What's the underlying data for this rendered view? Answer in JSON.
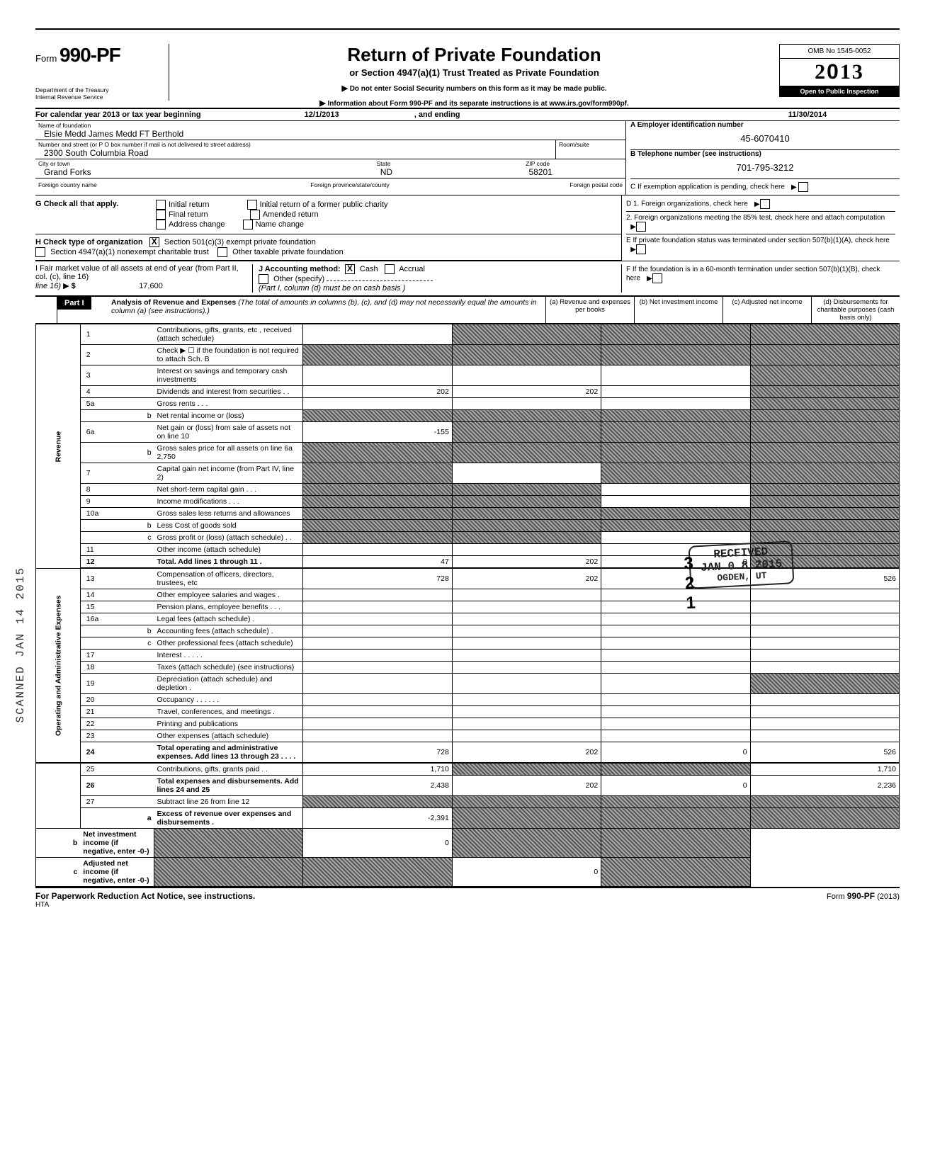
{
  "header": {
    "form_prefix": "Form",
    "form_number": "990-PF",
    "department": "Department of the Treasury",
    "irs": "Internal Revenue Service",
    "title": "Return of Private Foundation",
    "subtitle": "or Section 4947(a)(1) Trust Treated as Private Foundation",
    "instr1": "Do not enter Social Security numbers on this form as it may be made public.",
    "instr2": "Information about Form 990-PF and its separate instructions is at www.irs.gov/form990pf.",
    "omb": "OMB No  1545-0052",
    "year": "2013",
    "open": "Open to Public Inspection"
  },
  "calendar": {
    "label1": "For calendar year 2013 or tax year beginning",
    "begin": "12/1/2013",
    "label2": ", and ending",
    "end": "11/30/2014"
  },
  "foundation": {
    "name_label": "Name of foundation",
    "name": "Elsie Medd James Medd FT Berthold",
    "street_label": "Number and street (or P O  box number if mail is not delivered to street address)",
    "street": "2300 South Columbia Road",
    "room_label": "Room/suite",
    "room": "",
    "city_label": "City or town",
    "city": "Grand Forks",
    "state_label": "State",
    "state": "ND",
    "zip_label": "ZIP code",
    "zip": "58201",
    "foreign_country_label": "Foreign country name",
    "foreign_province_label": "Foreign province/state/county",
    "foreign_postal_label": "Foreign postal code"
  },
  "rightA": {
    "a_label": "A  Employer identification number",
    "ein": "45-6070410",
    "b_label": "B  Telephone number (see instructions)",
    "phone": "701-795-3212",
    "c_label": "C  If exemption application is pending, check here",
    "d1": "D  1. Foreign organizations, check here",
    "d2": "2. Foreign organizations meeting the 85% test, check here and attach computation",
    "e": "E  If private foundation status was terminated under section 507(b)(1)(A), check here",
    "f": "F  If the foundation is in a 60-month termination under section 507(b)(1)(B), check here"
  },
  "g": {
    "label": "G   Check all that apply.",
    "items": [
      "Initial return",
      "Initial return of a former public charity",
      "Final return",
      "Amended return",
      "Address change",
      "Name change"
    ]
  },
  "h": {
    "label": "H   Check type of organization",
    "opt1": "Section 501(c)(3) exempt private foundation",
    "opt2": "Section 4947(a)(1) nonexempt charitable trust",
    "opt3": "Other taxable private foundation"
  },
  "i": {
    "left1": "I    Fair market value of all assets at end of year (from Part II, col. (c), line 16)",
    "left_amount": "17,600",
    "j": "J   Accounting method:",
    "cash": "Cash",
    "accrual": "Accrual",
    "other": "Other (specify)",
    "note": "(Part I, column (d) must be on cash basis )"
  },
  "part1": {
    "label": "Part I",
    "title": "Analysis of Revenue and Expenses",
    "desc": "(The total of amounts in columns (b), (c), and (d) may not necessarily equal the amounts in column (a) (see instructions).)",
    "col_a": "(a)  Revenue and expenses per books",
    "col_b": "(b)  Net investment income",
    "col_c": "(c)  Adjusted net income",
    "col_d": "(d)  Disbursements for charitable purposes (cash basis only)"
  },
  "side_labels": {
    "revenue": "Revenue",
    "expenses": "Operating and Administrative Expenses"
  },
  "rows": [
    {
      "n": "1",
      "d": "Contributions, gifts, grants, etc , received (attach schedule)",
      "a": "",
      "b": "noise",
      "c": "noise",
      "dcol": "noise"
    },
    {
      "n": "2",
      "d": "Check ▶ ☐  if the foundation is not required to attach Sch. B",
      "a": "noise",
      "b": "noise",
      "c": "noise",
      "dcol": "noise"
    },
    {
      "n": "3",
      "d": "Interest on savings and temporary cash investments",
      "a": "",
      "b": "",
      "c": "",
      "dcol": "noise"
    },
    {
      "n": "4",
      "d": "Dividends and interest from securities   .    .",
      "a": "202",
      "b": "202",
      "c": "",
      "dcol": "noise"
    },
    {
      "n": "5a",
      "d": "Gross rents       .           .           .",
      "a": "",
      "b": "",
      "c": "",
      "dcol": "noise"
    },
    {
      "n": "b",
      "d": "Net rental income or (loss)",
      "a": "noise",
      "b": "noise",
      "c": "noise",
      "dcol": "noise",
      "inset": true
    },
    {
      "n": "6a",
      "d": "Net gain or (loss) from sale of assets not on line 10",
      "a": "-155",
      "b": "noise",
      "c": "noise",
      "dcol": "noise"
    },
    {
      "n": "b",
      "d": "Gross sales price for all assets on line 6a                        2,750",
      "a": "noise",
      "b": "noise",
      "c": "noise",
      "dcol": "noise",
      "inset": true
    },
    {
      "n": "7",
      "d": "Capital gain net income (from Part IV, line 2)",
      "a": "noise",
      "b": "",
      "c": "noise",
      "dcol": "noise"
    },
    {
      "n": "8",
      "d": "Net short-term capital gain       .     .     .",
      "a": "noise",
      "b": "noise",
      "c": "",
      "dcol": "noise"
    },
    {
      "n": "9",
      "d": "Income modifications   .        .        .",
      "a": "noise",
      "b": "noise",
      "c": "",
      "dcol": "noise"
    },
    {
      "n": "10a",
      "d": "Gross sales less returns and allowances",
      "a": "noise",
      "b": "noise",
      "c": "noise",
      "dcol": "noise"
    },
    {
      "n": "b",
      "d": "Less  Cost of goods sold",
      "a": "noise",
      "b": "noise",
      "c": "noise",
      "dcol": "noise",
      "inset": true
    },
    {
      "n": "c",
      "d": "Gross profit or (loss) (attach schedule)      .         .",
      "a": "noise",
      "b": "noise",
      "c": "",
      "dcol": "noise",
      "inset": true
    },
    {
      "n": "11",
      "d": "Other income (attach schedule)",
      "a": "",
      "b": "",
      "c": "",
      "dcol": "noise"
    },
    {
      "n": "12",
      "d": "Total.  Add lines 1 through 11           .",
      "a": "47",
      "b": "202",
      "c": "0",
      "dcol": "noise",
      "bold": true
    },
    {
      "n": "13",
      "d": "Compensation of officers, directors, trustees, etc",
      "a": "728",
      "b": "202",
      "c": "",
      "dcol": "526",
      "group": "exp"
    },
    {
      "n": "14",
      "d": "Other employee salaries and wages   .",
      "a": "",
      "b": "",
      "c": "",
      "dcol": "",
      "group": "exp"
    },
    {
      "n": "15",
      "d": "Pension plans, employee benefits   .      .     .",
      "a": "",
      "b": "",
      "c": "",
      "dcol": "",
      "group": "exp"
    },
    {
      "n": "16a",
      "d": "Legal fees (attach schedule)              .",
      "a": "",
      "b": "",
      "c": "",
      "dcol": "",
      "group": "exp"
    },
    {
      "n": "b",
      "d": "Accounting fees (attach schedule)   .",
      "a": "",
      "b": "",
      "c": "",
      "dcol": "",
      "group": "exp",
      "inset": true
    },
    {
      "n": "c",
      "d": "Other professional fees (attach schedule)",
      "a": "",
      "b": "",
      "c": "",
      "dcol": "",
      "group": "exp",
      "inset": true
    },
    {
      "n": "17",
      "d": "Interest        .        .        .        .        .",
      "a": "",
      "b": "",
      "c": "",
      "dcol": "",
      "group": "exp"
    },
    {
      "n": "18",
      "d": "Taxes (attach schedule) (see instructions)",
      "a": "",
      "b": "",
      "c": "",
      "dcol": "",
      "group": "exp"
    },
    {
      "n": "19",
      "d": "Depreciation (attach schedule) and depletion   .",
      "a": "",
      "b": "",
      "c": "",
      "dcol": "noise",
      "group": "exp"
    },
    {
      "n": "20",
      "d": "Occupancy   .        .        .        .     .     .",
      "a": "",
      "b": "",
      "c": "",
      "dcol": "",
      "group": "exp"
    },
    {
      "n": "21",
      "d": "Travel, conferences, and meetings    .",
      "a": "",
      "b": "",
      "c": "",
      "dcol": "",
      "group": "exp"
    },
    {
      "n": "22",
      "d": "Printing and publications",
      "a": "",
      "b": "",
      "c": "",
      "dcol": "",
      "group": "exp"
    },
    {
      "n": "23",
      "d": "Other expenses (attach schedule)",
      "a": "",
      "b": "",
      "c": "",
      "dcol": "",
      "group": "exp"
    },
    {
      "n": "24",
      "d": "Total operating and administrative expenses. Add lines 13 through 23       .       .       .       .",
      "a": "728",
      "b": "202",
      "c": "0",
      "dcol": "526",
      "group": "exp",
      "bold": true
    },
    {
      "n": "25",
      "d": "Contributions, gifts, grants paid          .            .",
      "a": "1,710",
      "b": "noise",
      "c": "noise",
      "dcol": "1,710",
      "group": "exp"
    },
    {
      "n": "26",
      "d": "Total expenses and disbursements. Add lines 24 and 25",
      "a": "2,438",
      "b": "202",
      "c": "0",
      "dcol": "2,236",
      "group": "exp",
      "bold": true
    },
    {
      "n": "27",
      "d": "Subtract line 26 from line 12",
      "a": "noise",
      "b": "noise",
      "c": "noise",
      "dcol": "noise",
      "group": "end"
    },
    {
      "n": "a",
      "d": "Excess of revenue over expenses and disbursements   .",
      "a": "-2,391",
      "b": "noise",
      "c": "noise",
      "dcol": "noise",
      "group": "end",
      "inset": true,
      "bold": true
    },
    {
      "n": "b",
      "d": "Net investment income (if negative, enter -0-)",
      "a": "noise",
      "b": "0",
      "c": "noise",
      "dcol": "noise",
      "group": "end",
      "inset": true,
      "bold": true
    },
    {
      "n": "c",
      "d": "Adjusted net income (if negative, enter -0-)",
      "a": "noise",
      "b": "noise",
      "c": "0",
      "dcol": "noise",
      "group": "end",
      "inset": true,
      "bold": true
    }
  ],
  "stamp": {
    "received": "RECEIVED",
    "date": "JAN 0 8 2015",
    "dept": "OGDEN, UT"
  },
  "sideways_stamp": "SCANNED JAN 14 2015",
  "footer": {
    "left": "For Paperwork Reduction Act Notice, see instructions.",
    "hta": "HTA",
    "right_prefix": "Form ",
    "right_form": "990-PF",
    "right_suffix": " (2013)"
  }
}
